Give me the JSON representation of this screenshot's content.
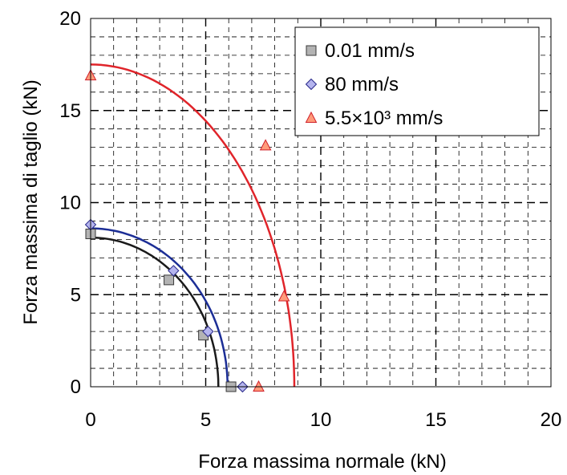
{
  "chart_data": {
    "type": "scatter",
    "title": "",
    "xlabel": "Forza massima normale (kN)",
    "ylabel": "Forza massima di taglio (kN)",
    "xlim": [
      0,
      20
    ],
    "ylim": [
      0,
      20
    ],
    "x_ticks": [
      0,
      5,
      10,
      15,
      20
    ],
    "y_ticks": [
      0,
      5,
      10,
      15,
      20
    ],
    "x_tick_labels": [
      "0",
      "5",
      "10",
      "15",
      "20"
    ],
    "y_tick_labels": [
      "0",
      "5",
      "10",
      "15",
      "20"
    ],
    "grid": true,
    "grid_minor_step": 1,
    "legend_position": "top-right",
    "series": [
      {
        "name": "0.01 mm/s",
        "marker": "square",
        "marker_color": "#b3b3b3",
        "curve_color": "#1a1a1a",
        "points": [
          [
            0,
            8.3
          ],
          [
            3.4,
            5.8
          ],
          [
            4.9,
            2.8
          ],
          [
            6.1,
            0.0
          ]
        ],
        "fit": {
          "a": 5.55,
          "b": 8.1
        }
      },
      {
        "name": "80 mm/s",
        "marker": "diamond",
        "marker_color": "#b4b4ee",
        "curve_color": "#1c2e96",
        "points": [
          [
            0,
            8.8
          ],
          [
            3.6,
            6.3
          ],
          [
            5.1,
            3.0
          ],
          [
            6.6,
            0.0
          ]
        ],
        "fit": {
          "a": 5.95,
          "b": 8.6
        }
      },
      {
        "name": "5.5×10³ mm/s",
        "marker": "triangle",
        "marker_color": "#ff9b7a",
        "curve_color": "#e0242a",
        "points": [
          [
            0,
            16.9
          ],
          [
            7.6,
            13.1
          ],
          [
            8.4,
            4.9
          ],
          [
            7.3,
            0.0
          ]
        ],
        "fit": {
          "a": 8.85,
          "b": 17.5
        }
      }
    ]
  }
}
